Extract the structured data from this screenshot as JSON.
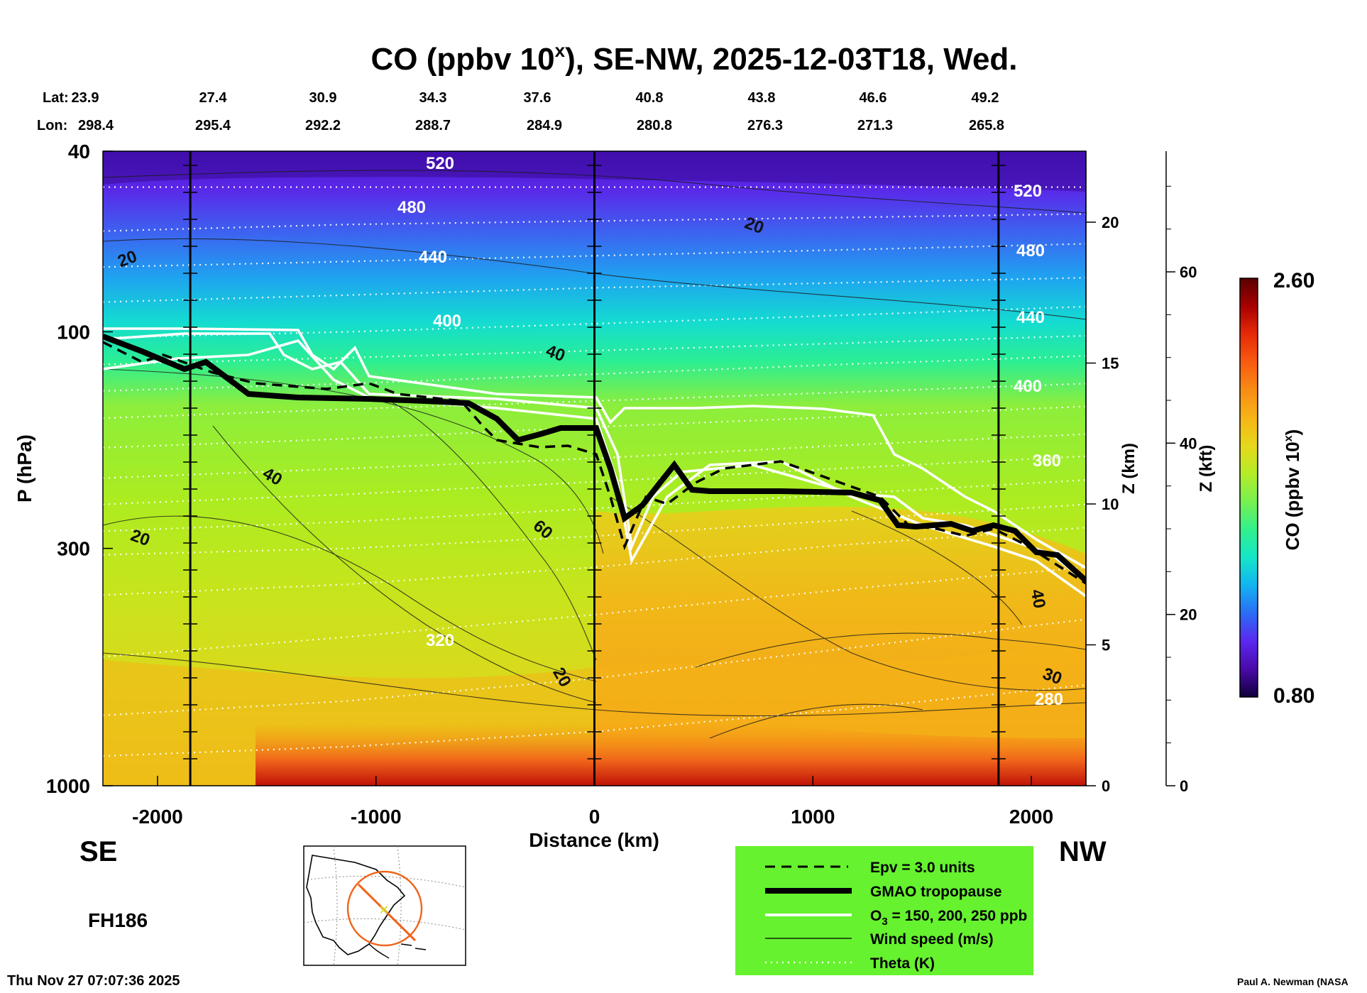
{
  "chart_data": {
    "type": "heatmap",
    "title_main": "CO (ppbv 10",
    "title_sup": "x",
    "title_rest": "), SE-NW, 2025-12-03T18, Wed.",
    "lat_label": "Lat:",
    "lon_label": "Lon:",
    "lat_values": [
      "23.9",
      "27.4",
      "30.9",
      "34.3",
      "37.6",
      "40.8",
      "43.8",
      "46.6",
      "49.2"
    ],
    "lon_values": [
      "298.4",
      "295.4",
      "292.2",
      "288.7",
      "284.9",
      "280.8",
      "276.3",
      "271.3",
      "265.8"
    ],
    "xlabel": "Distance (km)",
    "x_ticks": [
      -2000,
      -1000,
      0,
      1000,
      2000
    ],
    "x_tick_labels": [
      "-2000",
      "-1000",
      "0",
      "1000",
      "2000"
    ],
    "xlim": [
      -2250,
      2250
    ],
    "vertical_sections_km": [
      -1850,
      0,
      1850
    ],
    "ylabel": "P (hPa)",
    "y_ticks_hpa": [
      40,
      100,
      300,
      1000
    ],
    "y_tick_labels": [
      "40",
      "100",
      "300",
      "1000"
    ],
    "ylim_hpa": [
      1000,
      40
    ],
    "y_scale": "log",
    "z_km_label": "Z (km)",
    "z_km_ticks": [
      0,
      5,
      10,
      15,
      20
    ],
    "z_km_tick_labels": [
      "0",
      "5",
      "10",
      "15",
      "20"
    ],
    "z_kft_label": "Z (kft)",
    "z_kft_ticks": [
      0,
      20,
      40,
      60
    ],
    "z_kft_tick_labels": [
      "0",
      "20",
      "40",
      "60"
    ],
    "colorbar": {
      "label_main": "CO (ppbv 10",
      "label_sup": "x",
      "label_end": ")",
      "min": 0.8,
      "max": 2.6,
      "min_label": "0.80",
      "max_label": "2.60",
      "colors": [
        "#10003c",
        "#4a0aa8",
        "#5a28f0",
        "#2b6cf5",
        "#12b4f0",
        "#14e6c8",
        "#32f08c",
        "#78f050",
        "#b4ec28",
        "#e6d81a",
        "#f7b418",
        "#f88c14",
        "#f85a10",
        "#e62a08",
        "#a80000",
        "#5a0000"
      ]
    },
    "theta_contour_labels": [
      "520",
      "480",
      "440",
      "400",
      "360",
      "320",
      "280"
    ],
    "wind_contour_labels": [
      "20",
      "40",
      "60",
      "30"
    ],
    "left_label": "SE",
    "right_label": "NW",
    "forecast_hour": "FH186",
    "timestamp": "Thu Nov 27 07:07:36 2025",
    "credit": "Paul A. Newman (NASA",
    "legend": {
      "items": [
        {
          "label": "Epv = 3.0 units",
          "style": "dashed-black"
        },
        {
          "label": "GMAO tropopause",
          "style": "thick-black"
        },
        {
          "label_main": "O",
          "label_sub": "3",
          "label_rest": " = 150, 200, 250 ppb",
          "style": "white"
        },
        {
          "label": "Wind speed (m/s)",
          "style": "thin-black"
        },
        {
          "label": "Theta (K)",
          "style": "dotted-white"
        }
      ],
      "background": "#66f22f"
    },
    "section_map": "north-america-inset"
  }
}
